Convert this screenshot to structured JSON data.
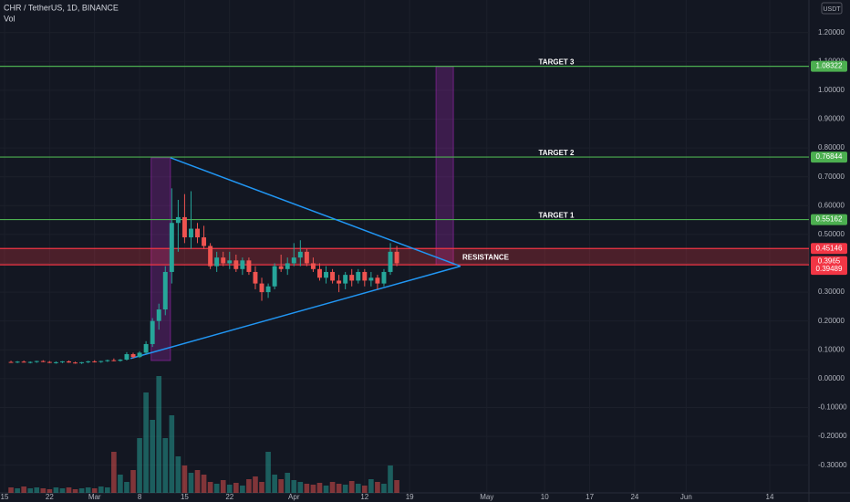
{
  "chart_data": {
    "type": "candlestick",
    "title": "CHR / TetherUS, 1D, BINANCE",
    "volume_label": "Vol",
    "currency": "USDT",
    "grid": true,
    "up_color": "#26a69a",
    "down_color": "#ef5350",
    "xlim": [
      -0.71,
      125.1
    ],
    "ylim": [
      -0.396,
      1.313
    ],
    "xticks": [
      {
        "value": 0,
        "label": "15"
      },
      {
        "value": 7,
        "label": "22"
      },
      {
        "value": 14,
        "label": "Mar"
      },
      {
        "value": 21,
        "label": "8"
      },
      {
        "value": 28,
        "label": "15"
      },
      {
        "value": 35,
        "label": "22"
      },
      {
        "value": 45,
        "label": "Apr"
      },
      {
        "value": 56,
        "label": "12"
      },
      {
        "value": 63,
        "label": "19"
      },
      {
        "value": 75,
        "label": "May"
      },
      {
        "value": 84,
        "label": "10"
      },
      {
        "value": 91,
        "label": "17"
      },
      {
        "value": 98,
        "label": "24"
      },
      {
        "value": 106,
        "label": "Jun"
      },
      {
        "value": 119,
        "label": "14"
      }
    ],
    "yticks": [
      {
        "value": -0.3,
        "label": "-0.30000"
      },
      {
        "value": -0.2,
        "label": "-0.20000"
      },
      {
        "value": -0.1,
        "label": "-0.10000"
      },
      {
        "value": 0,
        "label": "0.00000"
      },
      {
        "value": 0.1,
        "label": "0.10000"
      },
      {
        "value": 0.2,
        "label": "0.20000"
      },
      {
        "value": 0.3,
        "label": "0.30000"
      },
      {
        "value": 0.4,
        "label": "0.40000"
      },
      {
        "value": 0.5,
        "label": "0.50000"
      },
      {
        "value": 0.6,
        "label": "0.60000"
      },
      {
        "value": 0.7,
        "label": "0.70000"
      },
      {
        "value": 0.8,
        "label": "0.80000"
      },
      {
        "value": 0.9,
        "label": "0.90000"
      },
      {
        "value": 1.0,
        "label": "1.00000"
      },
      {
        "value": 1.1,
        "label": "1.10000"
      },
      {
        "value": 1.2,
        "label": "1.20000"
      }
    ],
    "x": [
      1,
      2,
      3,
      4,
      5,
      6,
      7,
      8,
      9,
      10,
      11,
      12,
      13,
      14,
      15,
      16,
      17,
      18,
      19,
      20,
      21,
      22,
      23,
      24,
      25,
      26,
      27,
      28,
      29,
      30,
      31,
      32,
      33,
      34,
      35,
      36,
      37,
      38,
      39,
      40,
      41,
      42,
      43,
      44,
      45,
      46,
      47,
      48,
      49,
      50,
      51,
      52,
      53,
      54,
      55,
      56,
      57,
      58,
      59,
      60,
      61
    ],
    "open": [
      0.058,
      0.057,
      0.059,
      0.056,
      0.058,
      0.061,
      0.058,
      0.055,
      0.057,
      0.06,
      0.056,
      0.054,
      0.057,
      0.06,
      0.058,
      0.061,
      0.064,
      0.062,
      0.066,
      0.085,
      0.075,
      0.09,
      0.12,
      0.2,
      0.24,
      0.37,
      0.54,
      0.56,
      0.49,
      0.52,
      0.49,
      0.46,
      0.39,
      0.42,
      0.4,
      0.41,
      0.38,
      0.41,
      0.37,
      0.33,
      0.3,
      0.32,
      0.39,
      0.38,
      0.4,
      0.42,
      0.44,
      0.4,
      0.38,
      0.35,
      0.37,
      0.34,
      0.33,
      0.36,
      0.34,
      0.37,
      0.34,
      0.35,
      0.33,
      0.37,
      0.44
    ],
    "high": [
      0.062,
      0.061,
      0.063,
      0.06,
      0.062,
      0.064,
      0.061,
      0.06,
      0.061,
      0.063,
      0.059,
      0.058,
      0.062,
      0.064,
      0.062,
      0.066,
      0.07,
      0.068,
      0.092,
      0.09,
      0.095,
      0.13,
      0.21,
      0.26,
      0.39,
      0.66,
      0.62,
      0.64,
      0.65,
      0.54,
      0.53,
      0.47,
      0.44,
      0.44,
      0.44,
      0.43,
      0.42,
      0.42,
      0.39,
      0.35,
      0.33,
      0.4,
      0.43,
      0.42,
      0.47,
      0.48,
      0.45,
      0.42,
      0.4,
      0.39,
      0.38,
      0.36,
      0.37,
      0.38,
      0.38,
      0.38,
      0.37,
      0.36,
      0.38,
      0.47,
      0.46
    ],
    "low": [
      0.055,
      0.054,
      0.056,
      0.053,
      0.055,
      0.057,
      0.054,
      0.052,
      0.054,
      0.055,
      0.052,
      0.051,
      0.054,
      0.056,
      0.055,
      0.058,
      0.06,
      0.059,
      0.063,
      0.07,
      0.072,
      0.085,
      0.11,
      0.17,
      0.22,
      0.33,
      0.44,
      0.47,
      0.45,
      0.47,
      0.45,
      0.38,
      0.37,
      0.39,
      0.38,
      0.37,
      0.36,
      0.36,
      0.31,
      0.27,
      0.28,
      0.31,
      0.37,
      0.36,
      0.39,
      0.39,
      0.39,
      0.37,
      0.34,
      0.33,
      0.33,
      0.3,
      0.31,
      0.32,
      0.33,
      0.32,
      0.32,
      0.31,
      0.32,
      0.36,
      0.39
    ],
    "close": [
      0.057,
      0.059,
      0.056,
      0.058,
      0.061,
      0.058,
      0.055,
      0.057,
      0.06,
      0.056,
      0.054,
      0.057,
      0.06,
      0.058,
      0.061,
      0.064,
      0.062,
      0.066,
      0.085,
      0.075,
      0.09,
      0.12,
      0.2,
      0.24,
      0.37,
      0.54,
      0.56,
      0.49,
      0.52,
      0.49,
      0.46,
      0.39,
      0.42,
      0.4,
      0.41,
      0.38,
      0.41,
      0.37,
      0.33,
      0.3,
      0.32,
      0.39,
      0.38,
      0.4,
      0.42,
      0.44,
      0.4,
      0.38,
      0.35,
      0.37,
      0.34,
      0.33,
      0.36,
      0.34,
      0.37,
      0.34,
      0.35,
      0.33,
      0.37,
      0.44,
      0.4
    ],
    "volume": [
      6,
      5,
      7,
      5,
      6,
      5,
      4,
      6,
      5,
      6,
      4,
      5,
      6,
      5,
      7,
      6,
      45,
      20,
      12,
      25,
      60,
      110,
      80,
      128,
      60,
      85,
      40,
      30,
      22,
      25,
      20,
      12,
      10,
      14,
      9,
      11,
      8,
      15,
      18,
      12,
      45,
      20,
      15,
      22,
      14,
      12,
      10,
      9,
      11,
      8,
      12,
      10,
      9,
      13,
      10,
      8,
      15,
      12,
      10,
      30,
      14
    ],
    "levels": [
      {
        "label": "TARGET 3",
        "value": 1.08322,
        "color": "#4caf50"
      },
      {
        "label": "TARGET 2",
        "value": 0.76844,
        "color": "#4caf50"
      },
      {
        "label": "TARGET 1",
        "value": 0.55162,
        "color": "#4caf50"
      }
    ],
    "zone": {
      "label": "RESISTANCE",
      "top": 0.45146,
      "bottom": 0.39489,
      "color": "#f23645"
    },
    "last_price": 0.3965,
    "trendlines": [
      {
        "x": [
          25.8,
          70.9
        ],
        "y": [
          0.766,
          0.39
        ],
        "color": "#2196f3"
      },
      {
        "x": [
          19.6,
          70.9
        ],
        "y": [
          0.07,
          0.39
        ],
        "color": "#2196f3"
      }
    ],
    "ranges": [
      {
        "x": [
          22.8,
          25.8
        ],
        "y": [
          0.063,
          0.766
        ],
        "color": "#9c27b0"
      },
      {
        "x": [
          67.1,
          69.8
        ],
        "y": [
          0.395,
          1.082
        ],
        "color": "#9c27b0"
      }
    ]
  }
}
